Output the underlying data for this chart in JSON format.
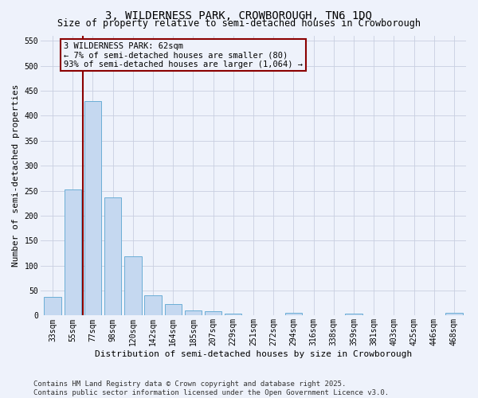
{
  "title": "3, WILDERNESS PARK, CROWBOROUGH, TN6 1DQ",
  "subtitle": "Size of property relative to semi-detached houses in Crowborough",
  "xlabel": "Distribution of semi-detached houses by size in Crowborough",
  "ylabel": "Number of semi-detached properties",
  "categories": [
    "33sqm",
    "55sqm",
    "77sqm",
    "98sqm",
    "120sqm",
    "142sqm",
    "164sqm",
    "185sqm",
    "207sqm",
    "229sqm",
    "251sqm",
    "272sqm",
    "294sqm",
    "316sqm",
    "338sqm",
    "359sqm",
    "381sqm",
    "403sqm",
    "425sqm",
    "446sqm",
    "468sqm"
  ],
  "values": [
    38,
    252,
    430,
    237,
    119,
    40,
    23,
    10,
    9,
    4,
    0,
    0,
    5,
    0,
    0,
    4,
    0,
    0,
    0,
    0,
    5
  ],
  "bar_color": "#c5d8f0",
  "bar_edge_color": "#6baed6",
  "background_color": "#eef2fb",
  "grid_color": "#c8cfe0",
  "vline_x": 1.5,
  "vline_color": "#8b0000",
  "annotation_text": "3 WILDERNESS PARK: 62sqm\n← 7% of semi-detached houses are smaller (80)\n93% of semi-detached houses are larger (1,064) →",
  "annotation_box_color": "#8b0000",
  "ylim": [
    0,
    560
  ],
  "yticks": [
    0,
    50,
    100,
    150,
    200,
    250,
    300,
    350,
    400,
    450,
    500,
    550
  ],
  "footer_line1": "Contains HM Land Registry data © Crown copyright and database right 2025.",
  "footer_line2": "Contains public sector information licensed under the Open Government Licence v3.0.",
  "title_fontsize": 10,
  "subtitle_fontsize": 8.5,
  "axis_label_fontsize": 8,
  "tick_fontsize": 7,
  "annotation_fontsize": 7.5,
  "footer_fontsize": 6.5
}
